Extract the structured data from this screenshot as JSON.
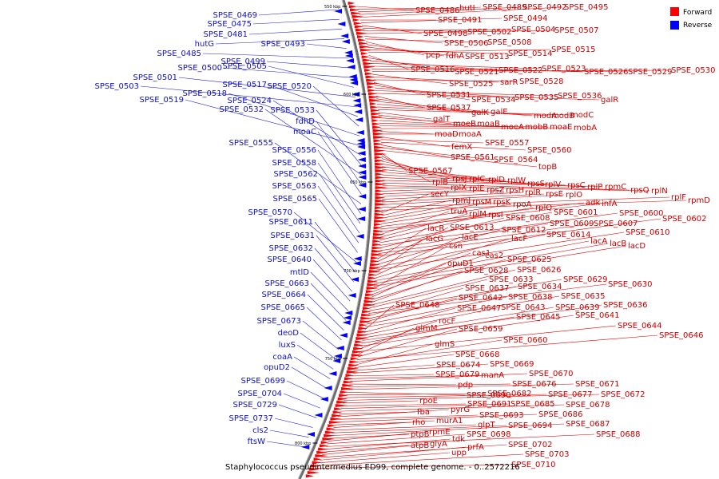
{
  "caption": "Staphylococcus pseudintermedius ED99, complete genome. - 0..2572216",
  "legend": [
    {
      "label": "Forward",
      "color": "#ff0000"
    },
    {
      "label": "Reverse",
      "color": "#0000ff"
    }
  ],
  "colors": {
    "forward": "#ff0000",
    "reverse": "#0000ff",
    "forward_text": "#c80000",
    "reverse_text": "#1010c8",
    "backbone": "#888888"
  },
  "ticks": [
    "550 kbp",
    "600 kbp",
    "650 kbp",
    "700 kbp",
    "750 kbp",
    "800 kbp"
  ],
  "forward_labels": [
    "SPSE_0486",
    "hutI",
    "SPSE_0489",
    "SPSE_0492",
    "SPSE_0495",
    "SPSE_0491",
    "SPSE_0494",
    "SPSE_0498",
    "SPSE_0502",
    "SPSE_0504",
    "SPSE_0507",
    "SPSE_0506",
    "SPSE_0508",
    "pcp",
    "fdhA",
    "SPSE_0513",
    "SPSE_0514",
    "SPSE_0515",
    "SPSE_0516",
    "SPSE_0521",
    "SPSE_0522",
    "SPSE_0523",
    "SPSE_0526",
    "SPSE_0529",
    "SPSE_0530",
    "SPSE_0525",
    "sarR",
    "SPSE_0528",
    "SPSE_0531",
    "SPSE_0534",
    "SPSE_0535",
    "SPSE_0536",
    "galR",
    "SPSE_0537",
    "galK",
    "galE",
    "modA",
    "modB",
    "modC",
    "galT",
    "moeB",
    "moaB",
    "moeA",
    "mobB",
    "moaE",
    "mobA",
    "moaD",
    "moaA",
    "femX",
    "SPSE_0557",
    "SPSE_0560",
    "SPSE_0561",
    "SPSE_0564",
    "topB",
    "SPSE_0567",
    "rplB",
    "rpsJ",
    "rplC",
    "rplD",
    "rplW",
    "rpsS",
    "rplV",
    "rpsC",
    "rplP",
    "rpmC",
    "rpsQ",
    "rplN",
    "rplX",
    "rplE",
    "rpsZ",
    "rpsH",
    "rplR",
    "rpsE",
    "rplO",
    "rplF",
    "rpmD",
    "secY",
    "rpmJ",
    "rpsM",
    "rpsK",
    "rpoA",
    "adk",
    "infA",
    "rplQ",
    "truA",
    "rplM",
    "rpsI",
    "SPSE_0601",
    "SPSE_0600",
    "SPSE_0608",
    "SPSE_0609",
    "SPSE_0607",
    "SPSE_0602",
    "lacR",
    "SPSE_0613",
    "SPSE_0612",
    "SPSE_0614",
    "SPSE_0610",
    "lacG",
    "lacE",
    "lacF",
    "lacA",
    "lacB",
    "lacD",
    "csn",
    "cas1",
    "cas2",
    "opuD1",
    "SPSE_0625",
    "SPSE_0628",
    "SPSE_0626",
    "SPSE_0633",
    "SPSE_0629",
    "SPSE_0630",
    "SPSE_0637",
    "SPSE_0634",
    "SPSE_0642",
    "SPSE_0638",
    "SPSE_0635",
    "SPSE_0648",
    "SPSE_0647",
    "SPSE_0643",
    "SPSE_0639",
    "SPSE_0636",
    "SPSE_0645",
    "SPSE_0641",
    "rocF",
    "SPSE_0644",
    "glmM",
    "SPSE_0659",
    "SPSE_0646",
    "SPSE_0660",
    "glmS",
    "SPSE_0668",
    "SPSE_0674",
    "SPSE_0669",
    "SPSE_0679",
    "manA",
    "SPSE_0670",
    "pdp",
    "SPSE_0676",
    "SPSE_0671",
    "SPSE_0690",
    "SPSE_0682",
    "SPSE_0677",
    "SPSE_0672",
    "rpoE",
    "SPSE_0691",
    "SPSE_0685",
    "SPSE_0678",
    "fba",
    "pyrG",
    "SPSE_0693",
    "SPSE_0686",
    "rho",
    "murA1",
    "glpT",
    "SPSE_0694",
    "SPSE_0687",
    "ptpB",
    "rpmE",
    "SPSE_0698",
    "SPSE_0688",
    "tdk",
    "atpB",
    "glyA",
    "SPSE_0702",
    "prfA",
    "upp",
    "SPSE_0703",
    "SPSE_0710"
  ],
  "reverse_labels": [
    "SPSE_0469",
    "SPSE_0475",
    "SPSE_0481",
    "hutG",
    "SPSE_0493",
    "SPSE_0485",
    "SPSE_0499",
    "SPSE_0500",
    "SPSE_0505",
    "SPSE_0501",
    "SPSE_0503",
    "SPSE_0517",
    "SPSE_0520",
    "SPSE_0518",
    "SPSE_0519",
    "SPSE_0524",
    "SPSE_0533",
    "SPSE_0532",
    "fdhD",
    "moaC",
    "SPSE_0555",
    "SPSE_0556",
    "SPSE_0558",
    "SPSE_0562",
    "SPSE_0563",
    "SPSE_0565",
    "SPSE_0570",
    "SPSE_0611",
    "SPSE_0631",
    "SPSE_0632",
    "SPSE_0640",
    "mtlD",
    "SPSE_0663",
    "SPSE_0664",
    "SPSE_0665",
    "SPSE_0673",
    "deoD",
    "luxS",
    "coaA",
    "opuD2",
    "SPSE_0699",
    "SPSE_0704",
    "SPSE_0729",
    "SPSE_0737",
    "cls2",
    "ftsW"
  ]
}
